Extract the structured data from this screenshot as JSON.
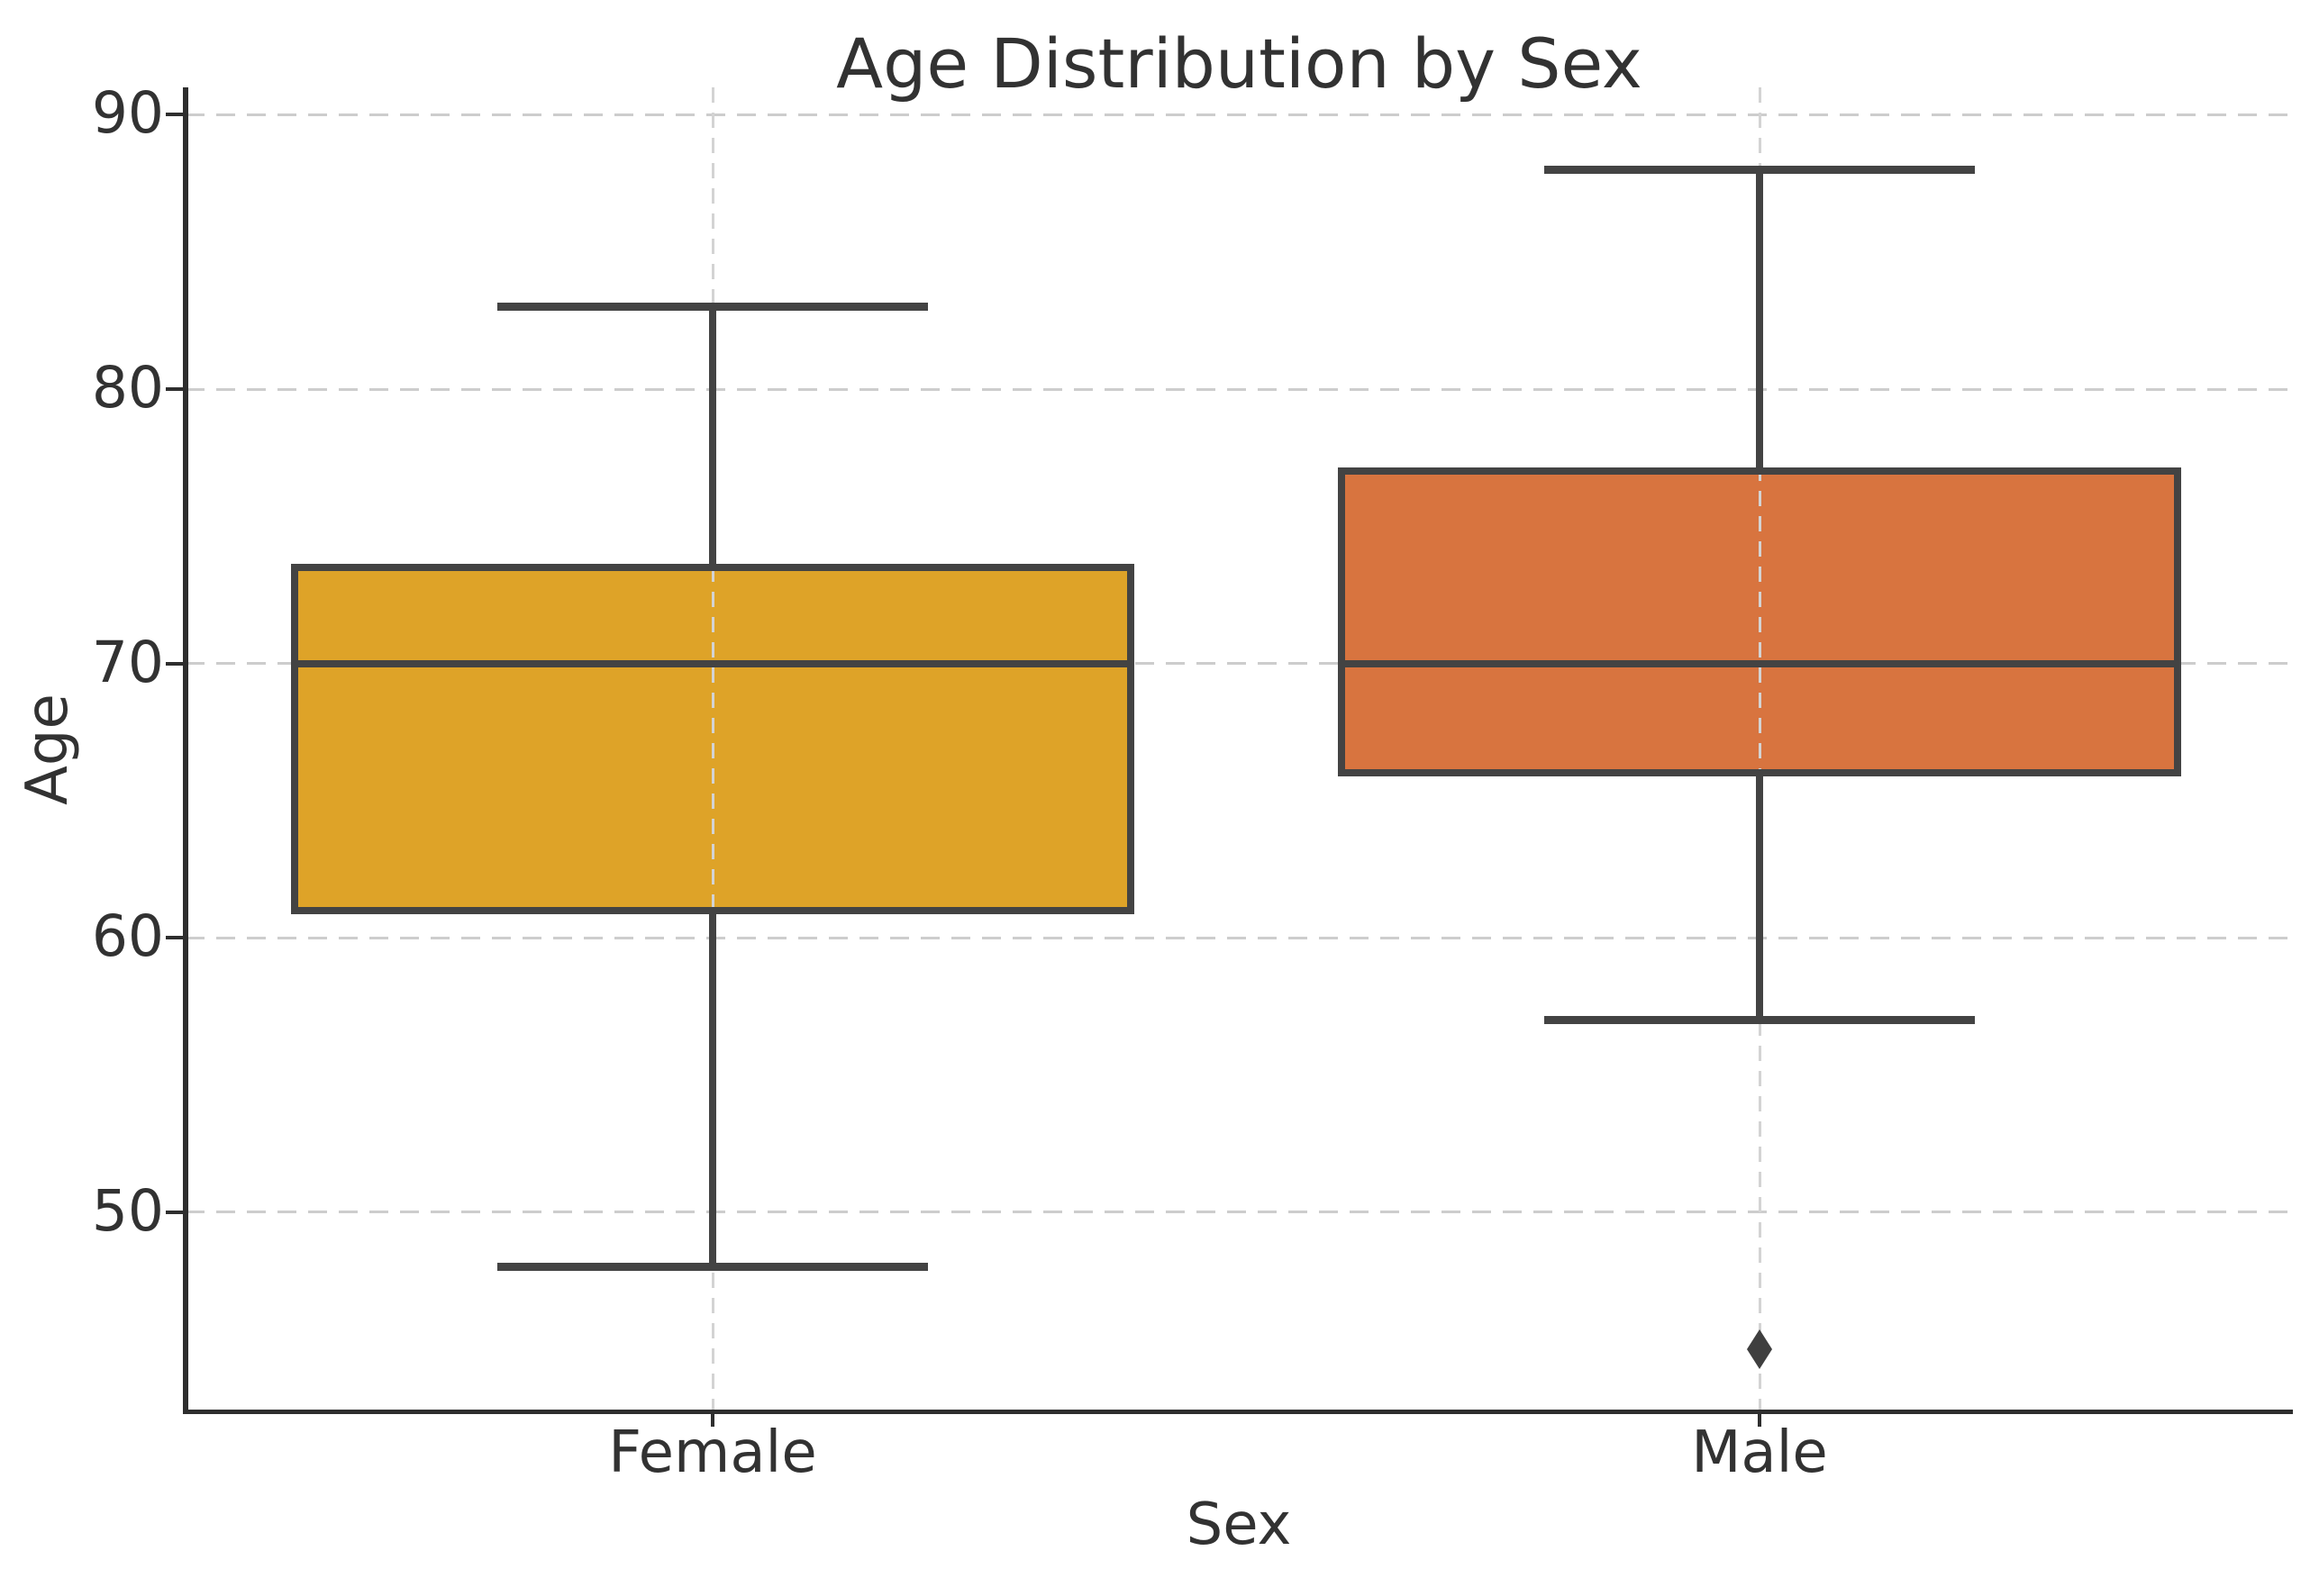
{
  "chart_data": {
    "type": "box",
    "title": "Age Distribution by Sex",
    "xlabel": "Sex",
    "ylabel": "Age",
    "categories": [
      "Female",
      "Male"
    ],
    "yticks": [
      90,
      80,
      70,
      60,
      50
    ],
    "ylim": [
      42.8,
      91.0
    ],
    "grid": "dashed horizontal gridlines at each ytick; dashed vertical line at each category center",
    "legend": "none",
    "series": [
      {
        "name": "Female",
        "fill_color": "#dea328",
        "whisker_low": 48,
        "q1": 61,
        "median": 70,
        "q3": 73.5,
        "whisker_high": 83,
        "outliers": []
      },
      {
        "name": "Male",
        "fill_color": "#d8743f",
        "whisker_low": 57,
        "q1": 66,
        "median": 70,
        "q3": 77,
        "whisker_high": 88,
        "outliers": [
          45
        ]
      }
    ],
    "stroke_color": "#434343",
    "gridline_color": "#cdcdcd",
    "spine_color": "#2e2e2e",
    "text_color": "#323232"
  }
}
